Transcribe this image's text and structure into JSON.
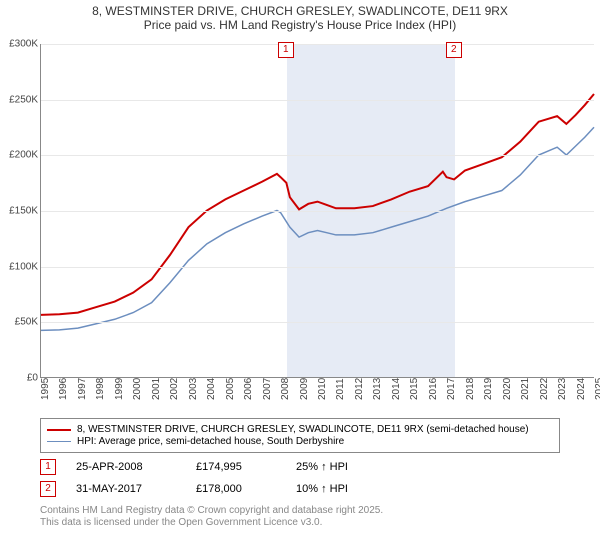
{
  "title": "8, WESTMINSTER DRIVE, CHURCH GRESLEY, SWADLINCOTE, DE11 9RX",
  "subtitle": "Price paid vs. HM Land Registry's House Price Index (HPI)",
  "chart": {
    "type": "line",
    "background_color": "#ffffff",
    "grid_color": "#e8e8e8",
    "axis_color": "#888888",
    "tick_fontsize": 10,
    "ylim": [
      0,
      300000
    ],
    "ytick_step": 50000,
    "yticks": [
      "£0",
      "£50K",
      "£100K",
      "£150K",
      "£200K",
      "£250K",
      "£300K"
    ],
    "x_range": [
      1995,
      2025
    ],
    "xticks": [
      1995,
      1996,
      1997,
      1998,
      1999,
      2000,
      2001,
      2002,
      2003,
      2004,
      2005,
      2006,
      2007,
      2008,
      2009,
      2010,
      2011,
      2012,
      2013,
      2014,
      2015,
      2016,
      2017,
      2018,
      2019,
      2020,
      2021,
      2022,
      2023,
      2024,
      2025
    ],
    "highlight_band_start": 2008.31,
    "highlight_band_end": 2017.41,
    "highlight_band_color": "#e6ebf5",
    "series": [
      {
        "name": "price_paid",
        "color": "#cc0000",
        "line_width": 2,
        "points": [
          [
            1995,
            56000
          ],
          [
            1996,
            56500
          ],
          [
            1997,
            58000
          ],
          [
            1998,
            63000
          ],
          [
            1999,
            68000
          ],
          [
            2000,
            76000
          ],
          [
            2001,
            88000
          ],
          [
            2002,
            110000
          ],
          [
            2003,
            135000
          ],
          [
            2004,
            150000
          ],
          [
            2005,
            160000
          ],
          [
            2006,
            168000
          ],
          [
            2007,
            176000
          ],
          [
            2007.8,
            183000
          ],
          [
            2008,
            180000
          ],
          [
            2008.31,
            174995
          ],
          [
            2008.5,
            162000
          ],
          [
            2009,
            151000
          ],
          [
            2009.5,
            156000
          ],
          [
            2010,
            158000
          ],
          [
            2010.5,
            155000
          ],
          [
            2011,
            152000
          ],
          [
            2012,
            152000
          ],
          [
            2013,
            154000
          ],
          [
            2014,
            160000
          ],
          [
            2015,
            167000
          ],
          [
            2016,
            172000
          ],
          [
            2016.8,
            185000
          ],
          [
            2017,
            180000
          ],
          [
            2017.41,
            178000
          ],
          [
            2018,
            186000
          ],
          [
            2019,
            192000
          ],
          [
            2020,
            198000
          ],
          [
            2021,
            212000
          ],
          [
            2022,
            230000
          ],
          [
            2023,
            235000
          ],
          [
            2023.5,
            228000
          ],
          [
            2024,
            236000
          ],
          [
            2024.5,
            245000
          ],
          [
            2025,
            255000
          ]
        ]
      },
      {
        "name": "hpi_avg",
        "color": "#6c8ebf",
        "line_width": 1.5,
        "points": [
          [
            1995,
            42000
          ],
          [
            1996,
            42500
          ],
          [
            1997,
            44000
          ],
          [
            1998,
            48000
          ],
          [
            1999,
            52000
          ],
          [
            2000,
            58000
          ],
          [
            2001,
            67000
          ],
          [
            2002,
            85000
          ],
          [
            2003,
            105000
          ],
          [
            2004,
            120000
          ],
          [
            2005,
            130000
          ],
          [
            2006,
            138000
          ],
          [
            2007,
            145000
          ],
          [
            2007.8,
            150000
          ],
          [
            2008,
            148000
          ],
          [
            2008.5,
            135000
          ],
          [
            2009,
            126000
          ],
          [
            2009.5,
            130000
          ],
          [
            2010,
            132000
          ],
          [
            2010.5,
            130000
          ],
          [
            2011,
            128000
          ],
          [
            2012,
            128000
          ],
          [
            2013,
            130000
          ],
          [
            2014,
            135000
          ],
          [
            2015,
            140000
          ],
          [
            2016,
            145000
          ],
          [
            2017,
            152000
          ],
          [
            2018,
            158000
          ],
          [
            2019,
            163000
          ],
          [
            2020,
            168000
          ],
          [
            2021,
            182000
          ],
          [
            2022,
            200000
          ],
          [
            2023,
            207000
          ],
          [
            2023.5,
            200000
          ],
          [
            2024,
            208000
          ],
          [
            2024.5,
            216000
          ],
          [
            2025,
            225000
          ]
        ]
      }
    ],
    "markers": [
      {
        "num": "1",
        "x": 2008.31,
        "border_color": "#cc0000"
      },
      {
        "num": "2",
        "x": 2017.41,
        "border_color": "#cc0000"
      }
    ]
  },
  "legend": {
    "items": [
      {
        "color": "#cc0000",
        "width": 2,
        "label": "8, WESTMINSTER DRIVE, CHURCH GRESLEY, SWADLINCOTE, DE11 9RX (semi-detached house)"
      },
      {
        "color": "#6c8ebf",
        "width": 1.5,
        "label": "HPI: Average price, semi-detached house, South Derbyshire"
      }
    ]
  },
  "events": [
    {
      "num": "1",
      "border_color": "#cc0000",
      "date": "25-APR-2008",
      "price": "£174,995",
      "delta": "25% ↑ HPI"
    },
    {
      "num": "2",
      "border_color": "#cc0000",
      "date": "31-MAY-2017",
      "price": "£178,000",
      "delta": "10% ↑ HPI"
    }
  ],
  "footnote_line1": "Contains HM Land Registry data © Crown copyright and database right 2025.",
  "footnote_line2": "This data is licensed under the Open Government Licence v3.0."
}
